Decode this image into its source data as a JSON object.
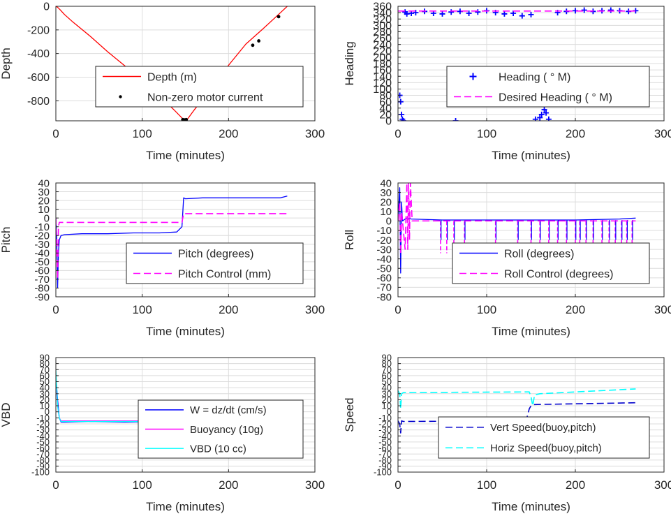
{
  "colors": {
    "red": "#ff0000",
    "blue": "#0000ff",
    "magenta": "#ff00ff",
    "cyan": "#00ffff",
    "dark_blue": "#0000cc",
    "black": "#000000",
    "grid": "#dcdcdc",
    "axis": "#262626"
  },
  "chart_data": [
    {
      "type": "line",
      "xlabel": "Time (minutes)",
      "ylabel": "Depth",
      "xlim": [
        0,
        300
      ],
      "ylim": [
        -970,
        0
      ],
      "xticks": [
        "0",
        "100",
        "200",
        "300"
      ],
      "yticks": [
        {
          "v": 0,
          "t": "0"
        },
        {
          "v": -200,
          "t": "-200"
        },
        {
          "v": -400,
          "t": "-400"
        },
        {
          "v": -600,
          "t": "-600"
        },
        {
          "v": -800,
          "t": "-800"
        }
      ],
      "grid": true,
      "legend": "center-right",
      "series": [
        {
          "name": "Depth (m)",
          "style": "line",
          "color": "red",
          "x": [
            0,
            2,
            5,
            10,
            20,
            40,
            60,
            80,
            100,
            120,
            140,
            148,
            150,
            152,
            160,
            180,
            200,
            220,
            240,
            260,
            268
          ],
          "y": [
            0,
            -8,
            -30,
            -70,
            -135,
            -255,
            -385,
            -505,
            -625,
            -755,
            -900,
            -960,
            -965,
            -960,
            -880,
            -690,
            -500,
            -320,
            -190,
            -55,
            0
          ]
        },
        {
          "name": "Non-zero motor current",
          "style": "dots",
          "color": "black",
          "x": [
            147,
            149,
            150,
            151,
            228,
            235,
            258
          ],
          "y": [
            -960,
            -962,
            -963,
            -960,
            -330,
            -293,
            -88
          ]
        }
      ]
    },
    {
      "type": "scatter",
      "xlabel": "Time (minutes)",
      "ylabel": "Heading",
      "xlim": [
        0,
        300
      ],
      "ylim": [
        0,
        360
      ],
      "xticks": [
        "0",
        "100",
        "200",
        "300"
      ],
      "yticks": [
        {
          "v": 0,
          "t": "0"
        },
        {
          "v": 20,
          "t": "20"
        },
        {
          "v": 40,
          "t": "40"
        },
        {
          "v": 60,
          "t": "60"
        },
        {
          "v": 80,
          "t": "80"
        },
        {
          "v": 100,
          "t": "100"
        },
        {
          "v": 120,
          "t": "120"
        },
        {
          "v": 140,
          "t": "140"
        },
        {
          "v": 160,
          "t": "160"
        },
        {
          "v": 180,
          "t": "180"
        },
        {
          "v": 200,
          "t": "200"
        },
        {
          "v": 220,
          "t": "220"
        },
        {
          "v": 240,
          "t": "240"
        },
        {
          "v": 260,
          "t": "260"
        },
        {
          "v": 280,
          "t": "280"
        },
        {
          "v": 300,
          "t": "300"
        },
        {
          "v": 320,
          "t": "320"
        },
        {
          "v": 340,
          "t": "340"
        },
        {
          "v": 360,
          "t": "360"
        }
      ],
      "grid": true,
      "legend": "center-right",
      "series": [
        {
          "name": "Heading (   ° M)",
          "style": "plus",
          "color": "blue",
          "x": [
            2,
            3,
            4,
            5,
            6,
            8,
            10,
            15,
            20,
            30,
            40,
            50,
            60,
            65,
            70,
            80,
            90,
            100,
            110,
            120,
            130,
            140,
            150,
            155,
            160,
            162,
            165,
            167,
            170,
            180,
            190,
            200,
            210,
            220,
            230,
            240,
            250,
            260,
            268
          ],
          "y": [
            80,
            60,
            20,
            5,
            0,
            342,
            336,
            338,
            340,
            344,
            338,
            336,
            342,
            0,
            344,
            338,
            342,
            346,
            340,
            336,
            338,
            330,
            334,
            5,
            10,
            20,
            35,
            25,
            5,
            340,
            344,
            346,
            348,
            344,
            346,
            348,
            346,
            344,
            346
          ]
        },
        {
          "name": "Desired Heading (      ° M)",
          "style": "dash",
          "color": "magenta",
          "x": [
            0,
            268
          ],
          "y": [
            345,
            345
          ]
        }
      ]
    },
    {
      "type": "line",
      "xlabel": "Time (minutes)",
      "ylabel": "Pitch",
      "xlim": [
        0,
        300
      ],
      "ylim": [
        -90,
        40
      ],
      "xticks": [
        "0",
        "100",
        "200",
        "300"
      ],
      "yticks": [
        {
          "v": 40,
          "t": "40"
        },
        {
          "v": 30,
          "t": "30"
        },
        {
          "v": 20,
          "t": "20"
        },
        {
          "v": 10,
          "t": "10"
        },
        {
          "v": 0,
          "t": "0"
        },
        {
          "v": -10,
          "t": "-10"
        },
        {
          "v": -20,
          "t": "-20"
        },
        {
          "v": -30,
          "t": "-30"
        },
        {
          "v": -40,
          "t": "-40"
        },
        {
          "v": -50,
          "t": "-50"
        },
        {
          "v": -60,
          "t": "-60"
        },
        {
          "v": -70,
          "t": "-70"
        },
        {
          "v": -80,
          "t": "-80"
        },
        {
          "v": -90,
          "t": "-90"
        }
      ],
      "grid": true,
      "legend": "bottom-right",
      "series": [
        {
          "name": "Pitch (degrees)",
          "style": "line",
          "color": "blue",
          "x": [
            0,
            1,
            2,
            3,
            4,
            6,
            10,
            30,
            60,
            90,
            120,
            140,
            146,
            148,
            150,
            170,
            200,
            230,
            260,
            268
          ],
          "y": [
            0,
            -20,
            -80,
            -40,
            -25,
            -20,
            -19,
            -18,
            -18,
            -17,
            -17,
            -16,
            -10,
            23,
            22,
            23,
            23,
            23,
            23,
            25
          ]
        },
        {
          "name": "Pitch Control (mm)",
          "style": "dash",
          "color": "magenta",
          "x": [
            0,
            2,
            3,
            4,
            146,
            148,
            150,
            268
          ],
          "y": [
            0,
            -70,
            -10,
            -5,
            -5,
            5,
            5,
            5
          ]
        }
      ]
    },
    {
      "type": "line",
      "xlabel": "Time (minutes)",
      "ylabel": "Roll",
      "xlim": [
        0,
        300
      ],
      "ylim": [
        -80,
        40
      ],
      "xticks": [
        "0",
        "100",
        "200",
        "300"
      ],
      "yticks": [
        {
          "v": 40,
          "t": "40"
        },
        {
          "v": 30,
          "t": "30"
        },
        {
          "v": 20,
          "t": "20"
        },
        {
          "v": 10,
          "t": "10"
        },
        {
          "v": 0,
          "t": "0"
        },
        {
          "v": -10,
          "t": "-10"
        },
        {
          "v": -20,
          "t": "-20"
        },
        {
          "v": -30,
          "t": "-30"
        },
        {
          "v": -40,
          "t": "-40"
        },
        {
          "v": -50,
          "t": "-50"
        },
        {
          "v": -60,
          "t": "-60"
        },
        {
          "v": -70,
          "t": "-70"
        },
        {
          "v": -80,
          "t": "-80"
        }
      ],
      "grid": true,
      "legend": "bottom-right",
      "spikes": [
        48,
        55,
        63,
        75,
        110,
        135,
        150,
        160,
        170,
        180,
        190,
        200,
        205,
        212,
        220,
        230,
        238,
        245,
        252,
        258,
        264
      ],
      "series": [
        {
          "name": "Roll (degrees)",
          "style": "line",
          "color": "blue",
          "x": [
            0,
            2,
            3,
            4,
            5,
            8,
            10,
            15,
            50,
            100,
            150,
            200,
            250,
            268
          ],
          "y": [
            0,
            35,
            -55,
            20,
            0,
            2,
            3,
            2,
            1,
            1,
            1,
            1,
            2,
            3
          ]
        },
        {
          "name": "Roll Control (degrees)",
          "style": "dash",
          "color": "magenta",
          "x": [
            0,
            2,
            3,
            4,
            5,
            8,
            10,
            11,
            12,
            13,
            14,
            16,
            20,
            268
          ],
          "y": [
            0,
            20,
            -35,
            10,
            0,
            -30,
            40,
            -30,
            40,
            -20,
            40,
            0,
            0,
            0
          ]
        }
      ]
    },
    {
      "type": "line",
      "xlabel": "Time (minutes)",
      "ylabel": "VBD",
      "xlim": [
        0,
        300
      ],
      "ylim": [
        -100,
        90
      ],
      "xticks": [
        "0",
        "100",
        "200",
        "300"
      ],
      "yticks": [
        {
          "v": 90,
          "t": "90"
        },
        {
          "v": 80,
          "t": "80"
        },
        {
          "v": 70,
          "t": "70"
        },
        {
          "v": 60,
          "t": "60"
        },
        {
          "v": 50,
          "t": "50"
        },
        {
          "v": 40,
          "t": "40"
        },
        {
          "v": 30,
          "t": "30"
        },
        {
          "v": 20,
          "t": "20"
        },
        {
          "v": 10,
          "t": "10"
        },
        {
          "v": 0,
          "t": "0"
        },
        {
          "v": -10,
          "t": "-10"
        },
        {
          "v": -20,
          "t": "-20"
        },
        {
          "v": -30,
          "t": "-30"
        },
        {
          "v": -40,
          "t": "-40"
        },
        {
          "v": -50,
          "t": "-50"
        },
        {
          "v": -60,
          "t": "-60"
        },
        {
          "v": -70,
          "t": "-70"
        },
        {
          "v": -80,
          "t": "-80"
        },
        {
          "v": -90,
          "t": "-90"
        },
        {
          "v": -100,
          "t": "-100"
        }
      ],
      "grid": true,
      "legend": "bottom-right",
      "series": [
        {
          "name": "W = dz/dt (cm/s)",
          "style": "line",
          "color": "blue",
          "x": [
            0,
            2,
            4,
            6,
            10,
            40,
            80,
            120,
            145,
            148,
            150,
            180,
            220,
            260,
            268
          ],
          "y": [
            60,
            20,
            -10,
            -17,
            -17,
            -16,
            -17,
            -16,
            -15,
            10,
            15,
            15,
            16,
            16,
            18
          ]
        },
        {
          "name": "Buoyancy (10g)",
          "style": "line",
          "color": "magenta",
          "x": [
            0,
            2,
            4,
            6,
            145,
            148,
            150,
            268
          ],
          "y": [
            50,
            10,
            -10,
            -15,
            -15,
            10,
            15,
            15
          ]
        },
        {
          "name": "VBD (10 cc)",
          "style": "line",
          "color": "cyan",
          "x": [
            0,
            2,
            4,
            6,
            145,
            148,
            150,
            268
          ],
          "y": [
            70,
            10,
            -10,
            -16,
            -16,
            15,
            17,
            17
          ]
        }
      ]
    },
    {
      "type": "line",
      "xlabel": "Time (minutes)",
      "ylabel": "Speed",
      "xlim": [
        0,
        300
      ],
      "ylim": [
        -100,
        90
      ],
      "xticks": [
        "0",
        "100",
        "200",
        "300"
      ],
      "yticks": [
        {
          "v": 90,
          "t": "90"
        },
        {
          "v": 80,
          "t": "80"
        },
        {
          "v": 70,
          "t": "70"
        },
        {
          "v": 60,
          "t": "60"
        },
        {
          "v": 50,
          "t": "50"
        },
        {
          "v": 40,
          "t": "40"
        },
        {
          "v": 30,
          "t": "30"
        },
        {
          "v": 20,
          "t": "20"
        },
        {
          "v": 10,
          "t": "10"
        },
        {
          "v": 0,
          "t": "0"
        },
        {
          "v": -10,
          "t": "-10"
        },
        {
          "v": -20,
          "t": "-20"
        },
        {
          "v": -30,
          "t": "-30"
        },
        {
          "v": -40,
          "t": "-40"
        },
        {
          "v": -50,
          "t": "-50"
        },
        {
          "v": -60,
          "t": "-60"
        },
        {
          "v": -70,
          "t": "-70"
        },
        {
          "v": -80,
          "t": "-80"
        },
        {
          "v": -90,
          "t": "-90"
        },
        {
          "v": -100,
          "t": "-100"
        }
      ],
      "grid": true,
      "legend": "bottom-right",
      "series": [
        {
          "name": "Vert Speed(buoy,pitch)",
          "style": "dash",
          "color": "dark_blue",
          "x": [
            0,
            2,
            3,
            4,
            6,
            140,
            145,
            148,
            150,
            152,
            268
          ],
          "y": [
            -15,
            -20,
            -35,
            -15,
            -16,
            -15,
            -12,
            5,
            10,
            12,
            15
          ]
        },
        {
          "name": "Horiz Speed(buoy,pitch)",
          "style": "dash",
          "color": "cyan",
          "x": [
            0,
            2,
            3,
            4,
            6,
            145,
            148,
            150,
            152,
            154,
            160,
            268
          ],
          "y": [
            35,
            30,
            5,
            30,
            32,
            33,
            33,
            25,
            10,
            28,
            30,
            38
          ]
        }
      ]
    }
  ]
}
